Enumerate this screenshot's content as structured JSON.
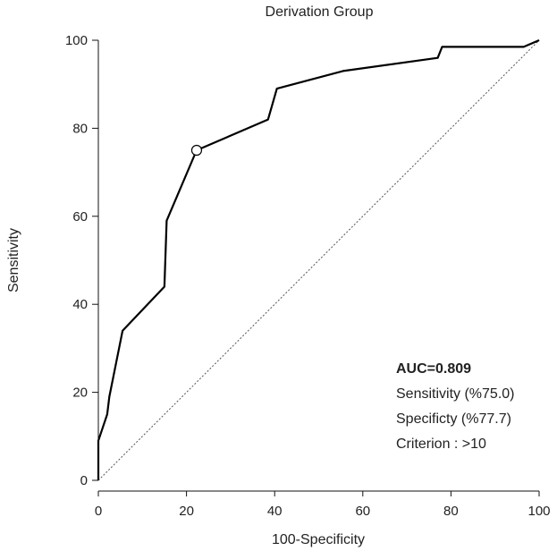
{
  "chart_data": {
    "type": "line",
    "title": "Derivation Group",
    "xlabel": "100-Specificity",
    "ylabel": "Sensitivity",
    "xlim": [
      0,
      100
    ],
    "ylim": [
      0,
      100
    ],
    "xticks": [
      "0",
      "20",
      "40",
      "60",
      "80",
      "100"
    ],
    "yticks": [
      "0",
      "20",
      "40",
      "60",
      "80",
      "100"
    ],
    "grid": false,
    "series": [
      {
        "values": [
          [
            0,
            0
          ],
          [
            0,
            9
          ],
          [
            2,
            15
          ],
          [
            2.5,
            19
          ],
          [
            5.5,
            34
          ],
          [
            15,
            44
          ],
          [
            15.5,
            59
          ],
          [
            22.3,
            75
          ],
          [
            38.5,
            82
          ],
          [
            40.5,
            89
          ],
          [
            55.5,
            93
          ],
          [
            77,
            96
          ],
          [
            78,
            98.5
          ],
          [
            96.5,
            98.5
          ],
          [
            100,
            100
          ]
        ],
        "color": "#000000"
      }
    ],
    "reference_line": [
      [
        0,
        0
      ],
      [
        100,
        100
      ]
    ],
    "marker_point": [
      22.3,
      75
    ],
    "annotations": {
      "auc": "AUC=0.809",
      "sensitivity": "Sensitivity (%75.0)",
      "specificity": "Specificty (%77.7)",
      "criterion": "Criterion : >10"
    }
  }
}
